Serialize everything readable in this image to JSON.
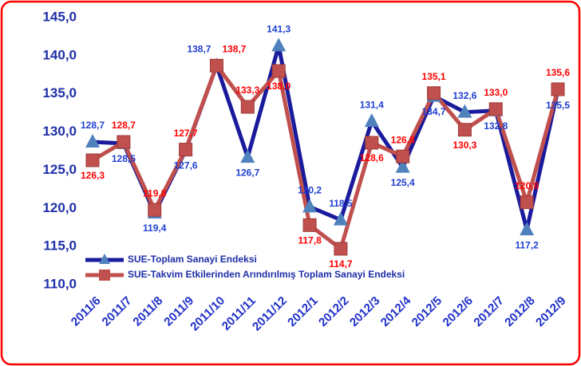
{
  "chart_data": {
    "type": "line",
    "categories": [
      "2011/6",
      "2011/7",
      "2011/8",
      "2011/9",
      "2011/10",
      "2011/11",
      "2011/12",
      "2012/1",
      "2012/2",
      "2012/3",
      "2012/4",
      "2012/5",
      "2012/6",
      "2012/7",
      "2012/8",
      "2012/9"
    ],
    "series": [
      {
        "name": "SUE-Toplam Sanayi Endeksi",
        "color": "#1a1a9c",
        "marker_color": "#4f81bd",
        "label_color": "#1f3fd0",
        "values": [
          128.7,
          128.5,
          119.4,
          127.6,
          138.7,
          126.7,
          141.3,
          120.2,
          118.5,
          131.4,
          125.4,
          134.7,
          132.6,
          132.8,
          117.2,
          135.5
        ],
        "value_labels": [
          "128,7",
          "128,5",
          "119,4",
          "127,6",
          "138,7",
          "126,7",
          "141,3",
          "120,2",
          "118,5",
          "131,4",
          "125,4",
          "134,7",
          "132,6",
          "132,8",
          "117,2",
          "135,5"
        ]
      },
      {
        "name": "SUE-Takvim Etkilerinden Arındırılmış Toplam Sanayi Endeksi",
        "color": "#c0504d",
        "marker_color": "#c0504d",
        "label_color": "#ff0000",
        "values": [
          126.3,
          128.7,
          119.8,
          127.7,
          138.7,
          133.3,
          138.0,
          117.8,
          114.7,
          128.6,
          126.8,
          135.1,
          130.3,
          133.0,
          120.8,
          135.6
        ],
        "value_labels": [
          "126,3",
          "128,7",
          "119,8",
          "127,7",
          "138,7",
          "133,3",
          "138,0",
          "117,8",
          "114,7",
          "128,6",
          "126,8",
          "135,1",
          "130,3",
          "133,0",
          "120,8",
          "135,6"
        ]
      }
    ],
    "ylim": [
      110,
      145
    ],
    "yticks": [
      {
        "value": 110,
        "label": "110,0"
      },
      {
        "value": 115,
        "label": "115,0"
      },
      {
        "value": 120,
        "label": "120,0"
      },
      {
        "value": 125,
        "label": "125,0"
      },
      {
        "value": 130,
        "label": "130,0"
      },
      {
        "value": 135,
        "label": "135,0"
      },
      {
        "value": 140,
        "label": "140,0"
      },
      {
        "value": 145,
        "label": "145,0"
      }
    ]
  }
}
